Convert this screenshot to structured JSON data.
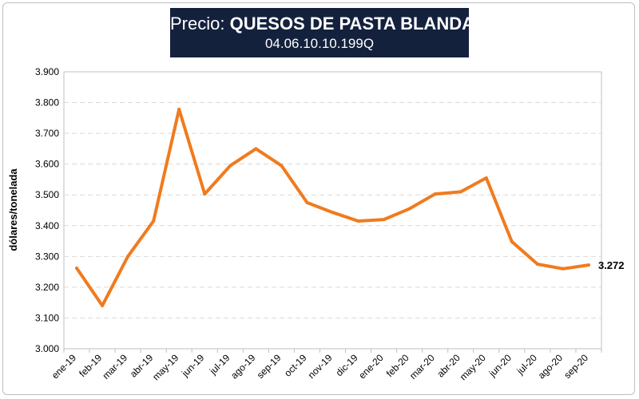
{
  "chart_data": {
    "type": "line",
    "title_prefix": "Precio: ",
    "title_main": "QUESOS DE PASTA BLANDA",
    "subtitle": "04.06.10.10.199Q",
    "ylabel": "dólares/tonelada",
    "xlabel": "",
    "ylim": [
      3000,
      3900
    ],
    "yticks": [
      3000,
      3100,
      3200,
      3300,
      3400,
      3500,
      3600,
      3700,
      3800,
      3900
    ],
    "ytick_labels": [
      "3.000",
      "3.100",
      "3.200",
      "3.300",
      "3.400",
      "3.500",
      "3.600",
      "3.700",
      "3.800",
      "3.900"
    ],
    "categories": [
      "ene-19",
      "feb-19",
      "mar-19",
      "abr-19",
      "may-19",
      "jun-19",
      "jul-19",
      "ago-19",
      "sep-19",
      "oct-19",
      "nov-19",
      "dic-19",
      "ene-20",
      "feb-20",
      "mar-20",
      "abr-20",
      "may-20",
      "jun-20",
      "jul-20",
      "ago-20",
      "sep-20"
    ],
    "series": [
      {
        "name": "Precio",
        "color": "#f07b1e",
        "values": [
          3262,
          3140,
          3300,
          3415,
          3778,
          3503,
          3595,
          3650,
          3595,
          3475,
          3443,
          3415,
          3420,
          3455,
          3503,
          3510,
          3555,
          3348,
          3275,
          3260,
          3272
        ]
      }
    ],
    "end_label": "3.272",
    "grid": true,
    "grid_color": "#d9d9d9"
  }
}
